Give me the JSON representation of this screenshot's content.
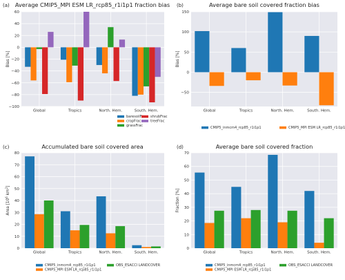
{
  "colors": {
    "blue": "#1f77b4",
    "orange": "#ff7f0e",
    "green": "#2ca02c",
    "red": "#d62728",
    "purple": "#9467bd"
  },
  "chart_data": [
    {
      "panel_label": "(a)",
      "type": "bar",
      "title": "Average CMIP5_MPI ESM LR_rcp85_r1i1p1 fraction bias",
      "ylabel": "Bias [%]",
      "xlabel": "",
      "ylim": [
        -100,
        60
      ],
      "yticks": [
        -100,
        -80,
        -60,
        -40,
        -20,
        0,
        20,
        40,
        60
      ],
      "grid": true,
      "legend_position": "bottom-center",
      "legend_columns": 2,
      "categories": [
        "Global",
        "Tropics",
        "North. Hem.",
        "South. Hem."
      ],
      "series": [
        {
          "name": "baresoilFrac",
          "color": "#1f77b4",
          "values": [
            -33,
            -21,
            -30,
            -82
          ]
        },
        {
          "name": "cropFrac",
          "color": "#ff7f0e",
          "values": [
            -56,
            -59,
            -44,
            -80
          ]
        },
        {
          "name": "grassFrac",
          "color": "#2ca02c",
          "values": [
            -3,
            -31,
            34,
            -66
          ]
        },
        {
          "name": "shrubFrac",
          "color": "#d62728",
          "values": [
            -79,
            -90,
            -57,
            -93
          ]
        },
        {
          "name": "treeFrac",
          "color": "#9467bd",
          "values": [
            26,
            60,
            13,
            -50
          ]
        }
      ]
    },
    {
      "panel_label": "(b)",
      "type": "bar",
      "title": "Average bare soil covered fraction bias",
      "ylabel": "Bias [%]",
      "xlabel": "",
      "ylim": [
        -85,
        150
      ],
      "yticks": [
        -50,
        0,
        50,
        100,
        150
      ],
      "grid": true,
      "legend_position": "bottom-center",
      "legend_columns": 2,
      "categories": [
        "Global",
        "Tropics",
        "North. Hem.",
        "South. Hem."
      ],
      "series": [
        {
          "name": "CMIP5_inmcm4_rcp85_r1i1p1",
          "color": "#1f77b4",
          "values": [
            102,
            60,
            149,
            90
          ]
        },
        {
          "name": "CMIP5_MPI ESM LR_rcp85_r1i1p1",
          "color": "#ff7f0e",
          "values": [
            -34,
            -20,
            -33,
            -82
          ]
        }
      ]
    },
    {
      "panel_label": "(c)",
      "type": "bar",
      "title": "Accumulated bare soil covered area",
      "ylabel": "Area [10",
      "ylabel_sup": "6",
      "ylabel_mid": " km",
      "ylabel_sup2": "2",
      "ylabel_end": "]",
      "xlabel": "",
      "ylim": [
        0,
        80
      ],
      "yticks": [
        0,
        10,
        20,
        30,
        40,
        50,
        60,
        70,
        80
      ],
      "grid": true,
      "legend_position": "bottom-center",
      "legend_columns": 2,
      "categories": [
        "Global",
        "Tropics",
        "North. Hem.",
        "South. Hem."
      ],
      "series": [
        {
          "name": "CMIP5_inmcm4_rcp85_r1i1p1",
          "color": "#1f77b4",
          "values": [
            77,
            31,
            43.5,
            2.5
          ]
        },
        {
          "name": "CMIP5_MPI ESM LR_rcp85_r1i1p1",
          "color": "#ff7f0e",
          "values": [
            28.5,
            15,
            12.5,
            1
          ]
        },
        {
          "name": "OBS_ESACCI LANDCOVER",
          "color": "#2ca02c",
          "values": [
            40,
            19.5,
            18.5,
            1.5
          ]
        }
      ]
    },
    {
      "panel_label": "(d)",
      "type": "bar",
      "title": "Average bare soil covered fraction",
      "ylabel": "Fraction [%]",
      "xlabel": "",
      "ylim": [
        0,
        70
      ],
      "yticks": [
        0,
        10,
        20,
        30,
        40,
        50,
        60,
        70
      ],
      "grid": true,
      "legend_position": "bottom-center",
      "legend_columns": 2,
      "categories": [
        "Global",
        "Tropics",
        "North. Hem.",
        "South. Hem."
      ],
      "series": [
        {
          "name": "CMIP5_inmcm4_rcp85_r1i1p1",
          "color": "#1f77b4",
          "values": [
            55.5,
            45,
            68.5,
            42
          ]
        },
        {
          "name": "CMIP5_MPI ESM LR_rcp85_r1i1p1",
          "color": "#ff7f0e",
          "values": [
            18.5,
            22,
            19,
            4
          ]
        },
        {
          "name": "OBS_ESACCI LANDCOVER",
          "color": "#2ca02c",
          "values": [
            27.5,
            28,
            27.5,
            22
          ]
        }
      ]
    }
  ]
}
